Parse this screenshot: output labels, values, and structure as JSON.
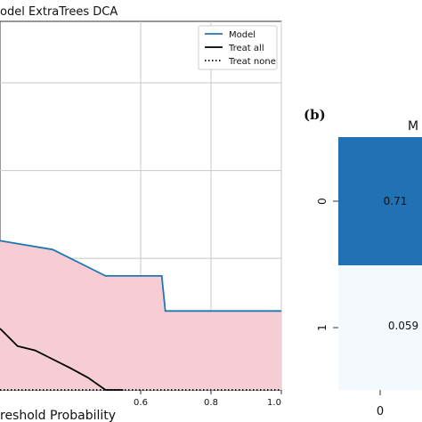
{
  "panel_a": {
    "title": "odel ExtraTrees DCA",
    "xlabel": "reshold Probability"
  },
  "panel_b": {
    "label": "(b)",
    "title_fragment": "M"
  },
  "colors": {
    "model": "#1f77b4",
    "treat_all": "#000000",
    "treat_none": "#000000",
    "fill": "#f7cdd5",
    "grid": "#c8c8c8",
    "cell_dark": "#2171b5",
    "cell_light": "#f4f9fe"
  },
  "chart_data": [
    {
      "type": "line",
      "title": "odel ExtraTrees DCA",
      "xlabel": "reshold Probability",
      "ylabel": "",
      "xlim": [
        0.2,
        1.0
      ],
      "ylim": [
        -0.05,
        0.37
      ],
      "x_ticks": [
        0.6,
        0.8,
        1.0
      ],
      "x_tick_labels": [
        "0.6",
        "0.8",
        "1.0"
      ],
      "grid": true,
      "legend": "top-right",
      "legend_entries": [
        "Model",
        "Treat all",
        "Treat none"
      ],
      "series": [
        {
          "name": "Model",
          "style": "solid",
          "x": [
            0.2,
            0.35,
            0.45,
            0.5,
            0.66,
            0.67,
            1.0
          ],
          "y": [
            0.12,
            0.11,
            0.09,
            0.08,
            0.08,
            0.04,
            0.04
          ]
        },
        {
          "name": "Treat all",
          "style": "solid",
          "x": [
            0.2,
            0.25,
            0.3,
            0.35,
            0.4,
            0.45,
            0.5,
            0.55
          ],
          "y": [
            0.02,
            0.0,
            -0.005,
            -0.015,
            -0.025,
            -0.036,
            -0.05,
            -0.05
          ]
        },
        {
          "name": "Treat none",
          "style": "dotted",
          "x": [
            0.2,
            1.0
          ],
          "y": [
            -0.05,
            -0.05
          ]
        }
      ],
      "shaded_area": {
        "between": [
          "Model",
          "Treat none"
        ]
      }
    },
    {
      "type": "heatmap",
      "label": "(b)",
      "title": "M",
      "row_labels": [
        "0",
        "1"
      ],
      "col_labels": [
        "0"
      ],
      "cells": [
        {
          "row": 0,
          "col": 0,
          "text": "0.71"
        },
        {
          "row": 1,
          "col": 0,
          "text": "0.059"
        }
      ]
    }
  ]
}
